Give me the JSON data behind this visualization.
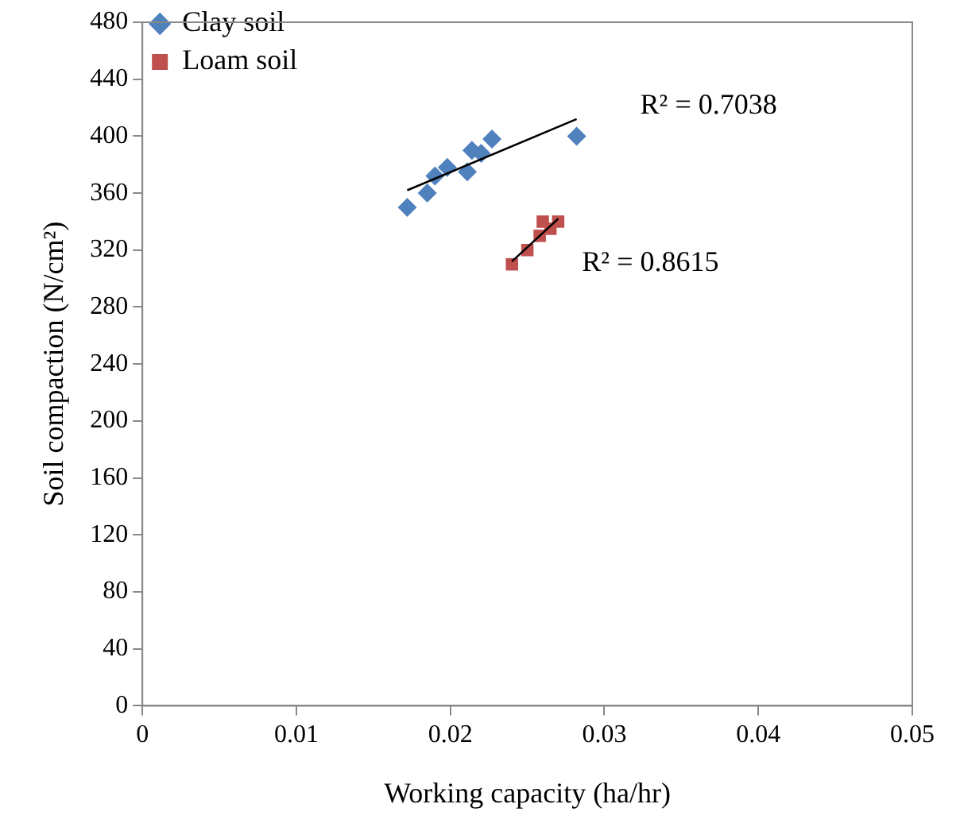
{
  "chart_data": {
    "type": "scatter",
    "xlabel": "Working capacity (ha/hr)",
    "ylabel": "Soil compaction (N/cm²)",
    "xlim": [
      0,
      0.05
    ],
    "xticks": [
      0,
      0.01,
      0.02,
      0.03,
      0.04,
      0.05
    ],
    "ylim": [
      0,
      480
    ],
    "yticks": [
      0,
      40,
      80,
      120,
      160,
      200,
      240,
      280,
      320,
      360,
      400,
      440,
      480
    ],
    "grid": false,
    "legend": "top left",
    "series": [
      {
        "name": "Clay soil",
        "color": "#4f81bd",
        "marker": "diamond",
        "x": [
          0.0172,
          0.0185,
          0.019,
          0.0198,
          0.0211,
          0.0214,
          0.022,
          0.0227,
          0.0282
        ],
        "values": [
          350,
          360,
          372,
          378,
          375,
          390,
          388,
          398,
          400
        ]
      },
      {
        "name": "Loam soil",
        "color": "#c0504d",
        "marker": "square",
        "x": [
          0.024,
          0.025,
          0.0258,
          0.026,
          0.0265,
          0.0268,
          0.027
        ],
        "values": [
          310,
          320,
          330,
          340,
          335,
          null,
          340
        ]
      },
      {
        "type": "line",
        "color": "#000000",
        "marker": "none",
        "x": [
          0.0172,
          0.0282
        ],
        "values": [
          362,
          412
        ]
      },
      {
        "type": "line",
        "color": "#000000",
        "marker": "none",
        "x": [
          0.024,
          0.027
        ],
        "values": [
          312,
          342
        ]
      }
    ],
    "annotations": [
      "R² = 0.7038",
      "R² = 0.8615"
    ]
  }
}
